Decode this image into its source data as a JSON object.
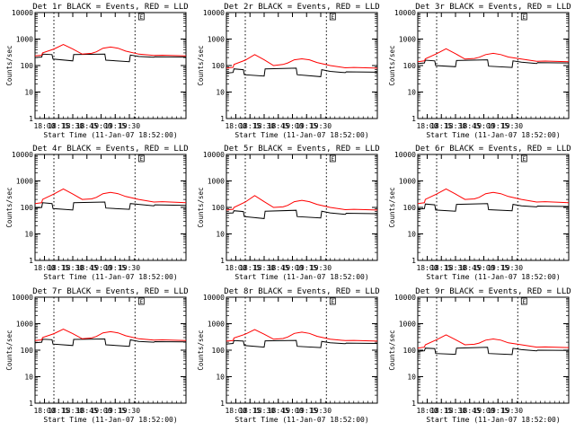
{
  "chart_data": {
    "type": "line",
    "colors": {
      "events": "#000000",
      "lld": "#ff0000",
      "axes": "#000000",
      "background": "#ffffff"
    },
    "common": {
      "ylabel": "Counts/sec",
      "xlabel": "Start Time (11-Jan-07 18:52:00)",
      "yscale": "log",
      "ylim": [
        1,
        10000
      ],
      "ytick_values": [
        1,
        10,
        100,
        1000,
        10000
      ],
      "ytick_labels": [
        "1",
        "10",
        "100",
        "1000",
        "10000"
      ],
      "xlim_minutes_after_1800": [
        -10,
        150
      ],
      "xtick_values": [
        0,
        15,
        30,
        45,
        60,
        75,
        90
      ],
      "xtick_labels": [
        "18:00",
        "18:15",
        "18:30",
        "18:45",
        "19:00",
        "19:15",
        "19:30"
      ],
      "vertical_markers_minutes_after_1800": [
        10,
        96
      ],
      "marker_label": "E"
    },
    "panels": [
      {
        "title": "Det 1r BLACK = Events, RED = LLD",
        "series": [
          {
            "name": "Events",
            "x": [
              -10,
              -3,
              -2,
              8,
              9,
              30,
              31,
              64,
              65,
              90,
              91,
              100,
              116,
              117,
              150
            ],
            "y": [
              200,
              210,
              270,
              260,
              175,
              150,
              260,
              270,
              160,
              140,
              250,
              220,
              205,
              215,
              210
            ]
          },
          {
            "name": "LLD",
            "x": [
              -10,
              -3,
              -2,
              10,
              20,
              30,
              40,
              50,
              55,
              62,
              70,
              78,
              86,
              100,
              116,
              125,
              150
            ],
            "y": [
              230,
              245,
              300,
              420,
              620,
              420,
              270,
              290,
              330,
              450,
              500,
              450,
              350,
              270,
              240,
              245,
              230
            ]
          }
        ]
      },
      {
        "title": "Det 2r BLACK = Events, RED = LLD",
        "series": [
          {
            "name": "Events",
            "x": [
              -10,
              -3,
              -2,
              8,
              9,
              30,
              31,
              64,
              65,
              90,
              91,
              100,
              116,
              117,
              150
            ],
            "y": [
              52,
              55,
              75,
              70,
              45,
              40,
              75,
              80,
              45,
              38,
              70,
              60,
              54,
              58,
              56
            ]
          },
          {
            "name": "LLD",
            "x": [
              -10,
              -3,
              -2,
              10,
              20,
              30,
              40,
              50,
              55,
              62,
              70,
              78,
              86,
              100,
              116,
              125,
              150
            ],
            "y": [
              80,
              85,
              110,
              160,
              260,
              165,
              100,
              110,
              125,
              165,
              180,
              165,
              130,
              100,
              82,
              85,
              80
            ]
          }
        ]
      },
      {
        "title": "Det 3r BLACK = Events, RED = LLD",
        "series": [
          {
            "name": "Events",
            "x": [
              -10,
              -3,
              -2,
              8,
              9,
              30,
              31,
              64,
              65,
              90,
              91,
              100,
              116,
              117,
              150
            ],
            "y": [
              120,
              125,
              160,
              150,
              100,
              90,
              155,
              165,
              95,
              85,
              150,
              135,
              120,
              128,
              125
            ]
          },
          {
            "name": "LLD",
            "x": [
              -10,
              -3,
              -2,
              10,
              20,
              30,
              40,
              50,
              55,
              62,
              70,
              78,
              86,
              100,
              116,
              125,
              150
            ],
            "y": [
              140,
              150,
              180,
              280,
              430,
              280,
              175,
              185,
              205,
              260,
              290,
              260,
              210,
              175,
              145,
              148,
              140
            ]
          }
        ]
      },
      {
        "title": "Det 4r BLACK = Events, RED = LLD",
        "series": [
          {
            "name": "Events",
            "x": [
              -10,
              -3,
              -2,
              8,
              9,
              30,
              31,
              64,
              65,
              90,
              91,
              100,
              116,
              117,
              150
            ],
            "y": [
              95,
              100,
              150,
              140,
              90,
              80,
              150,
              160,
              95,
              85,
              140,
              130,
              115,
              125,
              120
            ]
          },
          {
            "name": "LLD",
            "x": [
              -10,
              -3,
              -2,
              10,
              20,
              30,
              40,
              50,
              55,
              62,
              70,
              78,
              86,
              100,
              116,
              125,
              150
            ],
            "y": [
              140,
              150,
              200,
              320,
              500,
              320,
              200,
              210,
              240,
              330,
              370,
              330,
              260,
              200,
              160,
              165,
              150
            ]
          }
        ]
      },
      {
        "title": "Det 5r BLACK = Events, RED = LLD",
        "series": [
          {
            "name": "Events",
            "x": [
              -10,
              -3,
              -2,
              8,
              9,
              30,
              31,
              64,
              65,
              90,
              91,
              100,
              116,
              117,
              150
            ],
            "y": [
              60,
              62,
              75,
              70,
              45,
              38,
              72,
              78,
              45,
              40,
              72,
              62,
              55,
              60,
              58
            ]
          },
          {
            "name": "LLD",
            "x": [
              -10,
              -3,
              -2,
              10,
              20,
              30,
              40,
              50,
              55,
              62,
              70,
              78,
              86,
              100,
              116,
              125,
              150
            ],
            "y": [
              80,
              85,
              100,
              160,
              280,
              165,
              100,
              105,
              120,
              165,
              185,
              165,
              130,
              100,
              82,
              85,
              80
            ]
          }
        ]
      },
      {
        "title": "Det 6r BLACK = Events, RED = LLD",
        "series": [
          {
            "name": "Events",
            "x": [
              -10,
              -3,
              -2,
              8,
              9,
              30,
              31,
              64,
              65,
              90,
              91,
              100,
              116,
              117,
              150
            ],
            "y": [
              85,
              90,
              135,
              125,
              80,
              72,
              130,
              140,
              82,
              75,
              130,
              115,
              105,
              112,
              108
            ]
          },
          {
            "name": "LLD",
            "x": [
              -10,
              -3,
              -2,
              10,
              20,
              30,
              40,
              50,
              55,
              62,
              70,
              78,
              86,
              100,
              116,
              125,
              150
            ],
            "y": [
              140,
              150,
              200,
              320,
              500,
              320,
              200,
              210,
              240,
              330,
              370,
              330,
              260,
              200,
              160,
              165,
              150
            ]
          }
        ]
      },
      {
        "title": "Det 7r BLACK = Events, RED = LLD",
        "series": [
          {
            "name": "Events",
            "x": [
              -10,
              -3,
              -2,
              8,
              9,
              30,
              31,
              64,
              65,
              90,
              91,
              100,
              116,
              117,
              150
            ],
            "y": [
              190,
              200,
              260,
              250,
              170,
              150,
              255,
              265,
              160,
              140,
              245,
              215,
              200,
              210,
              205
            ]
          },
          {
            "name": "LLD",
            "x": [
              -10,
              -3,
              -2,
              10,
              20,
              30,
              40,
              50,
              55,
              62,
              70,
              78,
              86,
              100,
              116,
              125,
              150
            ],
            "y": [
              230,
              245,
              300,
              420,
              620,
              420,
              270,
              290,
              330,
              450,
              500,
              450,
              350,
              270,
              240,
              245,
              230
            ]
          }
        ]
      },
      {
        "title": "Det 8r BLACK = Events, RED = LLD",
        "series": [
          {
            "name": "Events",
            "x": [
              -10,
              -3,
              -2,
              8,
              9,
              30,
              31,
              64,
              65,
              90,
              91,
              100,
              116,
              117,
              150
            ],
            "y": [
              170,
              180,
              230,
              220,
              150,
              130,
              225,
              235,
              140,
              125,
              215,
              190,
              175,
              185,
              180
            ]
          },
          {
            "name": "LLD",
            "x": [
              -10,
              -3,
              -2,
              10,
              20,
              30,
              40,
              50,
              55,
              62,
              70,
              78,
              86,
              100,
              116,
              125,
              150
            ],
            "y": [
              220,
              230,
              290,
              400,
              600,
              400,
              260,
              275,
              315,
              430,
              480,
              430,
              335,
              260,
              230,
              235,
              220
            ]
          }
        ]
      },
      {
        "title": "Det 9r BLACK = Events, RED = LLD",
        "series": [
          {
            "name": "Events",
            "x": [
              -10,
              -3,
              -2,
              8,
              9,
              30,
              31,
              64,
              65,
              90,
              91,
              100,
              116,
              117,
              150
            ],
            "y": [
              90,
              95,
              120,
              115,
              75,
              70,
              120,
              128,
              75,
              68,
              118,
              105,
              95,
              100,
              98
            ]
          },
          {
            "name": "LLD",
            "x": [
              -10,
              -3,
              -2,
              10,
              20,
              30,
              40,
              50,
              55,
              62,
              70,
              78,
              86,
              100,
              116,
              125,
              150
            ],
            "y": [
              120,
              130,
              160,
              250,
              380,
              250,
              160,
              168,
              185,
              240,
              265,
              240,
              190,
              160,
              130,
              132,
              125
            ]
          }
        ]
      }
    ]
  }
}
